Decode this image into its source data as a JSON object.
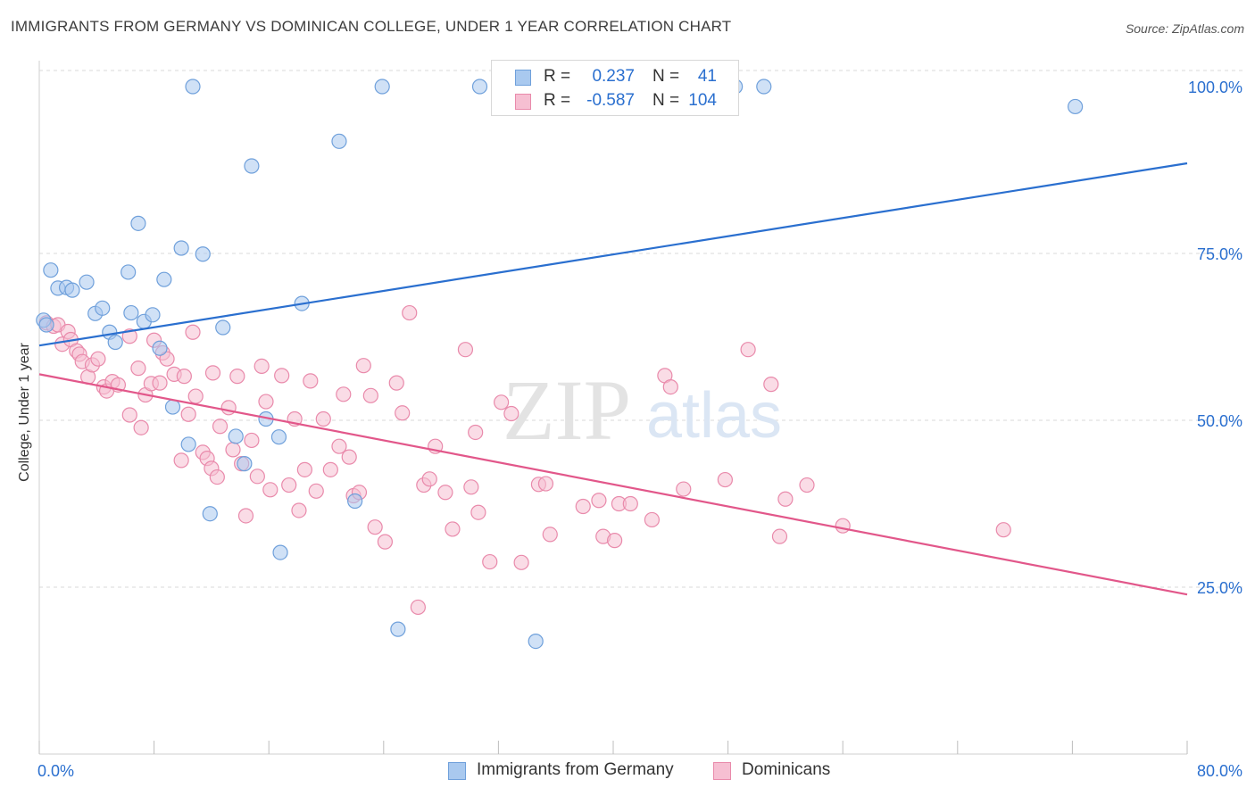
{
  "title": "IMMIGRANTS FROM GERMANY VS DOMINICAN COLLEGE, UNDER 1 YEAR CORRELATION CHART",
  "source": "Source: ZipAtlas.com",
  "watermark": {
    "zip": "ZIP",
    "atlas": "atlas"
  },
  "colors": {
    "blue_fill": "#a9c9ef",
    "blue_stroke": "#6fa0db",
    "blue_line": "#2a6fcf",
    "pink_fill": "#f6bfd2",
    "pink_stroke": "#e98aab",
    "pink_line": "#e2578a",
    "value_text": "#2a6fcf",
    "grid": "#d9d9d9"
  },
  "legend": {
    "rows": [
      {
        "r_label": "R =",
        "r_value": "0.237",
        "n_label": "N =",
        "n_value": "41"
      },
      {
        "r_label": "R =",
        "r_value": "-0.587",
        "n_label": "N =",
        "n_value": "104"
      }
    ]
  },
  "bottom_legend": {
    "germany": "Immigrants from Germany",
    "dominicans": "Dominicans"
  },
  "chart_data": {
    "type": "scatter",
    "title": "IMMIGRANTS FROM GERMANY VS DOMINICAN COLLEGE, UNDER 1 YEAR CORRELATION CHART",
    "xlabel": "",
    "ylabel": "College, Under 1 year",
    "xlim": [
      0,
      80
    ],
    "ylim": [
      0,
      102
    ],
    "x_tick_labels": [
      "0.0%",
      "80.0%"
    ],
    "y_ticks": [
      25,
      50,
      75,
      100
    ],
    "y_tick_labels": [
      "25.0%",
      "50.0%",
      "75.0%",
      "100.0%"
    ],
    "grid": true,
    "series": [
      {
        "name": "Immigrants from Germany",
        "r": 0.237,
        "n": 41,
        "trend": {
          "x": [
            0,
            80
          ],
          "y": [
            61.2,
            88.5
          ]
        },
        "points": [
          [
            0.3,
            65.0
          ],
          [
            0.8,
            72.5
          ],
          [
            1.3,
            69.8
          ],
          [
            1.9,
            69.9
          ],
          [
            2.3,
            69.5
          ],
          [
            3.3,
            70.7
          ],
          [
            3.9,
            66.0
          ],
          [
            4.4,
            66.8
          ],
          [
            4.9,
            63.2
          ],
          [
            5.3,
            61.7
          ],
          [
            6.2,
            72.2
          ],
          [
            6.4,
            66.1
          ],
          [
            6.9,
            79.5
          ],
          [
            7.3,
            64.8
          ],
          [
            7.9,
            65.8
          ],
          [
            8.4,
            60.8
          ],
          [
            8.7,
            71.1
          ],
          [
            9.3,
            52.0
          ],
          [
            9.9,
            75.8
          ],
          [
            10.4,
            46.4
          ],
          [
            10.7,
            100.0
          ],
          [
            11.4,
            74.9
          ],
          [
            11.9,
            36.0
          ],
          [
            12.8,
            63.9
          ],
          [
            13.7,
            47.6
          ],
          [
            14.3,
            43.5
          ],
          [
            14.8,
            88.1
          ],
          [
            15.8,
            50.2
          ],
          [
            16.7,
            47.5
          ],
          [
            16.8,
            30.2
          ],
          [
            18.3,
            67.5
          ],
          [
            20.9,
            91.8
          ],
          [
            22.0,
            37.9
          ],
          [
            23.9,
            100.0
          ],
          [
            25.0,
            18.7
          ],
          [
            30.7,
            100.0
          ],
          [
            34.6,
            16.9
          ],
          [
            48.5,
            100.0
          ],
          [
            50.5,
            100.0
          ],
          [
            72.2,
            97.0
          ],
          [
            0.5,
            64.3
          ]
        ]
      },
      {
        "name": "Dominicans",
        "r": -0.587,
        "n": 104,
        "trend": {
          "x": [
            0,
            80
          ],
          "y": [
            56.9,
            23.9
          ]
        },
        "points": [
          [
            0.5,
            64.6
          ],
          [
            1.0,
            64.1
          ],
          [
            1.3,
            64.3
          ],
          [
            1.6,
            61.4
          ],
          [
            2.0,
            63.3
          ],
          [
            2.2,
            62.1
          ],
          [
            2.6,
            60.4
          ],
          [
            2.8,
            59.9
          ],
          [
            3.0,
            58.8
          ],
          [
            3.4,
            56.5
          ],
          [
            3.7,
            58.3
          ],
          [
            4.1,
            59.2
          ],
          [
            4.5,
            55.0
          ],
          [
            4.7,
            54.4
          ],
          [
            5.1,
            55.8
          ],
          [
            5.5,
            55.3
          ],
          [
            6.3,
            62.6
          ],
          [
            6.3,
            50.8
          ],
          [
            6.9,
            57.8
          ],
          [
            7.1,
            48.9
          ],
          [
            7.4,
            53.8
          ],
          [
            7.8,
            55.5
          ],
          [
            8.0,
            62.0
          ],
          [
            8.4,
            55.6
          ],
          [
            8.6,
            60.1
          ],
          [
            8.9,
            59.2
          ],
          [
            9.4,
            56.9
          ],
          [
            9.9,
            44.0
          ],
          [
            10.1,
            56.6
          ],
          [
            10.4,
            50.9
          ],
          [
            10.7,
            63.2
          ],
          [
            10.9,
            53.6
          ],
          [
            11.4,
            45.2
          ],
          [
            11.7,
            44.3
          ],
          [
            12.0,
            42.8
          ],
          [
            12.4,
            41.5
          ],
          [
            12.6,
            49.1
          ],
          [
            13.2,
            51.9
          ],
          [
            13.5,
            45.6
          ],
          [
            13.8,
            56.6
          ],
          [
            14.1,
            43.5
          ],
          [
            14.4,
            35.7
          ],
          [
            14.8,
            47.0
          ],
          [
            15.2,
            41.6
          ],
          [
            15.5,
            58.1
          ],
          [
            15.8,
            52.8
          ],
          [
            16.1,
            39.6
          ],
          [
            16.9,
            56.7
          ],
          [
            17.4,
            40.3
          ],
          [
            17.8,
            50.2
          ],
          [
            18.1,
            36.5
          ],
          [
            18.5,
            42.6
          ],
          [
            18.9,
            55.9
          ],
          [
            19.3,
            39.4
          ],
          [
            19.8,
            50.2
          ],
          [
            20.3,
            42.6
          ],
          [
            20.9,
            46.1
          ],
          [
            21.2,
            53.9
          ],
          [
            21.6,
            44.5
          ],
          [
            21.9,
            38.7
          ],
          [
            22.3,
            39.2
          ],
          [
            22.6,
            58.2
          ],
          [
            23.1,
            53.7
          ],
          [
            23.4,
            34.0
          ],
          [
            24.1,
            31.8
          ],
          [
            24.9,
            55.6
          ],
          [
            25.3,
            51.1
          ],
          [
            25.8,
            66.1
          ],
          [
            26.4,
            22.0
          ],
          [
            26.8,
            40.3
          ],
          [
            27.2,
            41.2
          ],
          [
            27.6,
            46.1
          ],
          [
            28.3,
            39.2
          ],
          [
            28.8,
            33.7
          ],
          [
            29.7,
            60.6
          ],
          [
            30.1,
            40.0
          ],
          [
            30.4,
            48.2
          ],
          [
            30.6,
            36.2
          ],
          [
            31.4,
            28.8
          ],
          [
            32.2,
            52.7
          ],
          [
            32.9,
            51.0
          ],
          [
            33.6,
            28.7
          ],
          [
            34.8,
            40.4
          ],
          [
            35.3,
            40.5
          ],
          [
            35.6,
            32.9
          ],
          [
            37.9,
            37.1
          ],
          [
            39.0,
            38.0
          ],
          [
            39.3,
            32.6
          ],
          [
            40.1,
            32.0
          ],
          [
            40.4,
            37.5
          ],
          [
            41.2,
            37.5
          ],
          [
            42.7,
            35.1
          ],
          [
            43.6,
            56.7
          ],
          [
            44.0,
            55.0
          ],
          [
            44.9,
            39.7
          ],
          [
            47.8,
            41.1
          ],
          [
            49.4,
            60.6
          ],
          [
            51.0,
            55.4
          ],
          [
            51.6,
            32.6
          ],
          [
            52.0,
            38.2
          ],
          [
            53.5,
            40.3
          ],
          [
            56.0,
            34.2
          ],
          [
            67.2,
            33.6
          ],
          [
            12.1,
            57.1
          ]
        ]
      }
    ]
  }
}
